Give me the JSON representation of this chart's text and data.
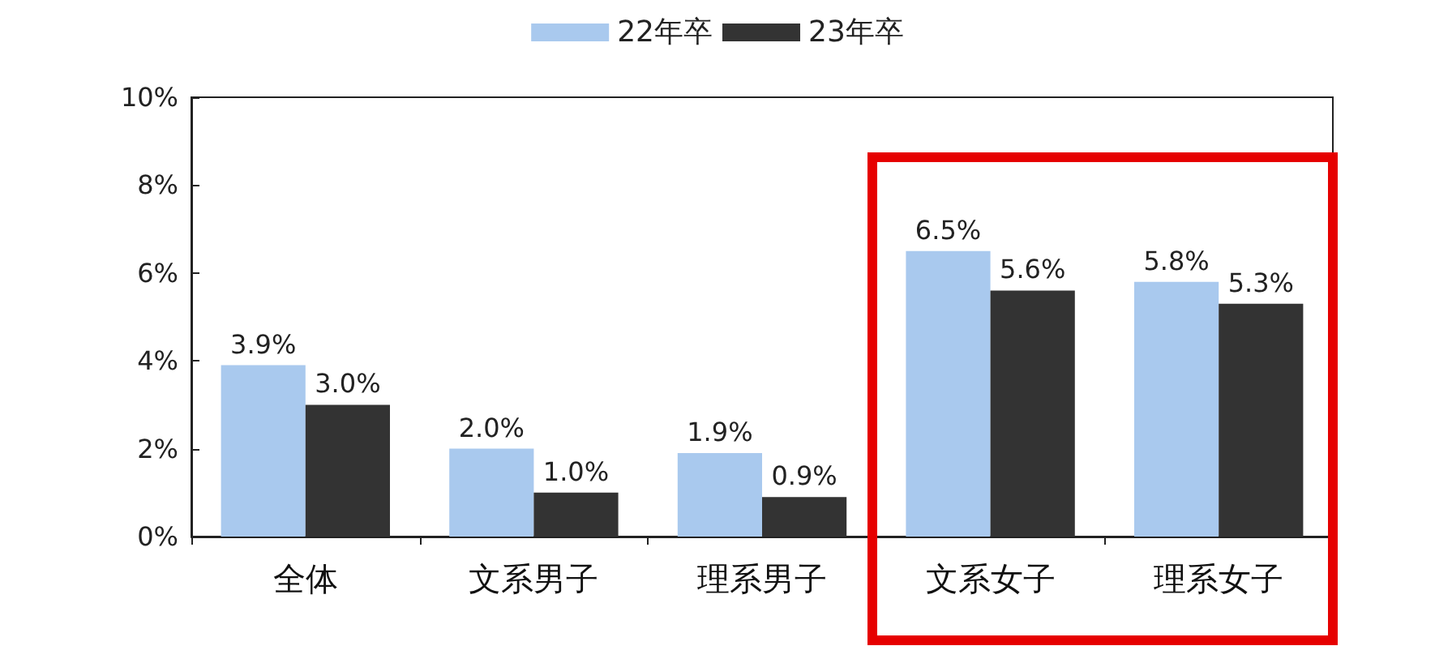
{
  "chart_data": {
    "type": "bar",
    "categories": [
      "全体",
      "文系男子",
      "理系男子",
      "文系女子",
      "理系女子"
    ],
    "series": [
      {
        "name": "22年卒",
        "color": "#a9c9ee",
        "values": [
          3.9,
          2.0,
          1.9,
          6.5,
          5.8
        ],
        "value_labels": [
          "3.9%",
          "2.0%",
          "1.9%",
          "6.5%",
          "5.8%"
        ]
      },
      {
        "name": "23年卒",
        "color": "#333333",
        "values": [
          3.0,
          1.0,
          0.9,
          5.6,
          5.3
        ],
        "value_labels": [
          "3.0%",
          "1.0%",
          "0.9%",
          "5.6%",
          "5.3%"
        ]
      }
    ],
    "ylim": [
      0,
      10
    ],
    "yticks": [
      {
        "value": 0,
        "label": "0%"
      },
      {
        "value": 2,
        "label": "2%"
      },
      {
        "value": 4,
        "label": "4%"
      },
      {
        "value": 6,
        "label": "6%"
      },
      {
        "value": 8,
        "label": "8%"
      },
      {
        "value": 10,
        "label": "10%"
      }
    ],
    "grid": false,
    "legend": "top"
  }
}
